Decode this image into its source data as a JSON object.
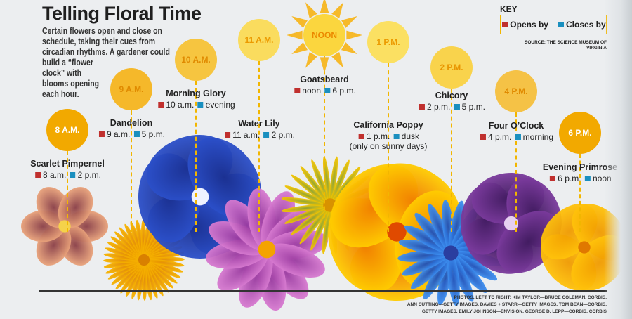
{
  "title": "Telling Floral Time",
  "intro": "Certain flowers open and close on schedule, taking their cues from circadian rhythms. A gardener could build a “flower clock” with blooms opening each hour.",
  "key": {
    "title": "KEY",
    "opens_label": "Opens by",
    "closes_label": "Closes by",
    "opens_color": "#c0302e",
    "closes_color": "#1a8fbf"
  },
  "source": "SOURCE: THE SCIENCE MUSEUM OF VIRGINIA",
  "hours": [
    {
      "time": "8 A.M.",
      "color": "#f2a900",
      "text_color": "#ffffff",
      "flower": "Scarlet Pimpernel",
      "opens": "8 a.m.",
      "closes": "2 p.m."
    },
    {
      "time": "9 A.M.",
      "color": "#f5b82a",
      "text_color": "#e08a00",
      "flower": "Dandelion",
      "opens": "9 a.m.",
      "closes": "5 p.m."
    },
    {
      "time": "10 A.M.",
      "color": "#f6c540",
      "text_color": "#e08a00",
      "flower": "Morning Glory",
      "opens": "10 a.m.",
      "closes": "evening"
    },
    {
      "time": "11 A.M.",
      "color": "#fadc5e",
      "text_color": "#ec9a00",
      "flower": "Water Lily",
      "opens": "11 a.m.",
      "closes": "2 p.m."
    },
    {
      "time": "NOON",
      "color": "#fbd63e",
      "text_color": "#ec8a00",
      "flower": "Goatsbeard",
      "opens": "noon",
      "closes": "6 p.m."
    },
    {
      "time": "1 P.M.",
      "color": "#fbe062",
      "text_color": "#ec9a00",
      "flower": "California Poppy",
      "opens": "1 p.m.",
      "closes": "dusk",
      "note": "(only on sunny days)"
    },
    {
      "time": "2 P.M.",
      "color": "#f9d34c",
      "text_color": "#e89400",
      "flower": "Chicory",
      "opens": "2 p.m.",
      "closes": "5 p.m."
    },
    {
      "time": "4 P.M.",
      "color": "#f5c246",
      "text_color": "#e08a00",
      "flower": "Four O’Clock",
      "opens": "4 p.m.",
      "closes": "morning"
    },
    {
      "time": "6 P.M.",
      "color": "#f2a900",
      "text_color": "#ffffff",
      "flower": "Evening Primrose",
      "opens": "6 p.m.",
      "closes": "noon"
    }
  ],
  "credits": [
    "PHOTOS, LEFT TO RIGHT: KIM TAYLOR—BRUCE COLEMAN, CORBIS,",
    "ANN CUTTING—GETTY IMAGES, DAVIES + STARR—GETTY IMAGES, TOM BEAN—CORBIS,",
    "GETTY IMAGES, EMILY JOHNSON—ENVISION, GEORGE D. LEPP—CORBIS, CORBIS"
  ]
}
